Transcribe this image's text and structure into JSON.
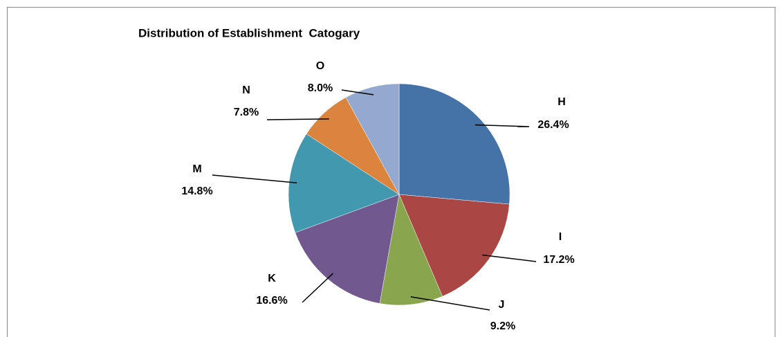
{
  "chart_data": {
    "type": "pie",
    "title": "Distribution of Establishment  Catogary",
    "categories": [
      "H",
      "I",
      "J",
      "K",
      "M",
      "N",
      "O"
    ],
    "values": [
      26.4,
      17.2,
      9.2,
      16.6,
      14.8,
      7.8,
      8.0
    ],
    "value_labels": [
      "26.4%",
      "17.2%",
      "9.2%",
      "16.6%",
      "14.8%",
      "7.8%",
      "8.0%"
    ],
    "colors": [
      "#4572a7",
      "#aa4643",
      "#89a54e",
      "#71588f",
      "#4198af",
      "#db843d",
      "#93a9cf"
    ]
  }
}
